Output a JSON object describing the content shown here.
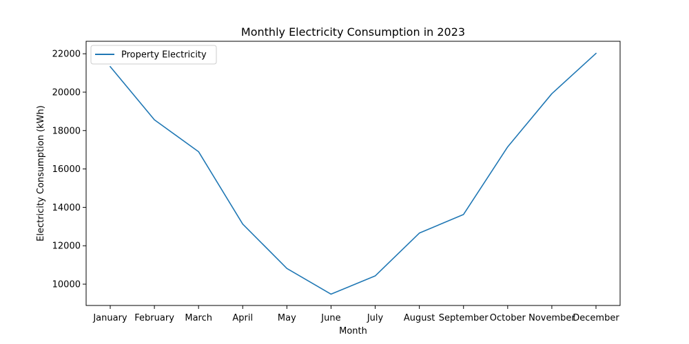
{
  "chart_data": {
    "type": "line",
    "title": "Monthly Electricity Consumption in 2023",
    "xlabel": "Month",
    "ylabel": "Electricity Consumption (kWh)",
    "categories": [
      "January",
      "February",
      "March",
      "April",
      "May",
      "June",
      "July",
      "August",
      "September",
      "October",
      "November",
      "December"
    ],
    "series": [
      {
        "name": "Property Electricity",
        "color": "#1f77b4",
        "values": [
          21330,
          18560,
          16900,
          13130,
          10820,
          9480,
          10430,
          12660,
          13630,
          17150,
          19920,
          22020
        ]
      }
    ],
    "ylim": [
      8890,
      22650
    ],
    "yticks": [
      10000,
      12000,
      14000,
      16000,
      18000,
      20000,
      22000
    ],
    "ytick_labels": [
      "10000",
      "12000",
      "14000",
      "16000",
      "18000",
      "20000",
      "22000"
    ],
    "grid": false,
    "legend_position": "upper-left"
  }
}
